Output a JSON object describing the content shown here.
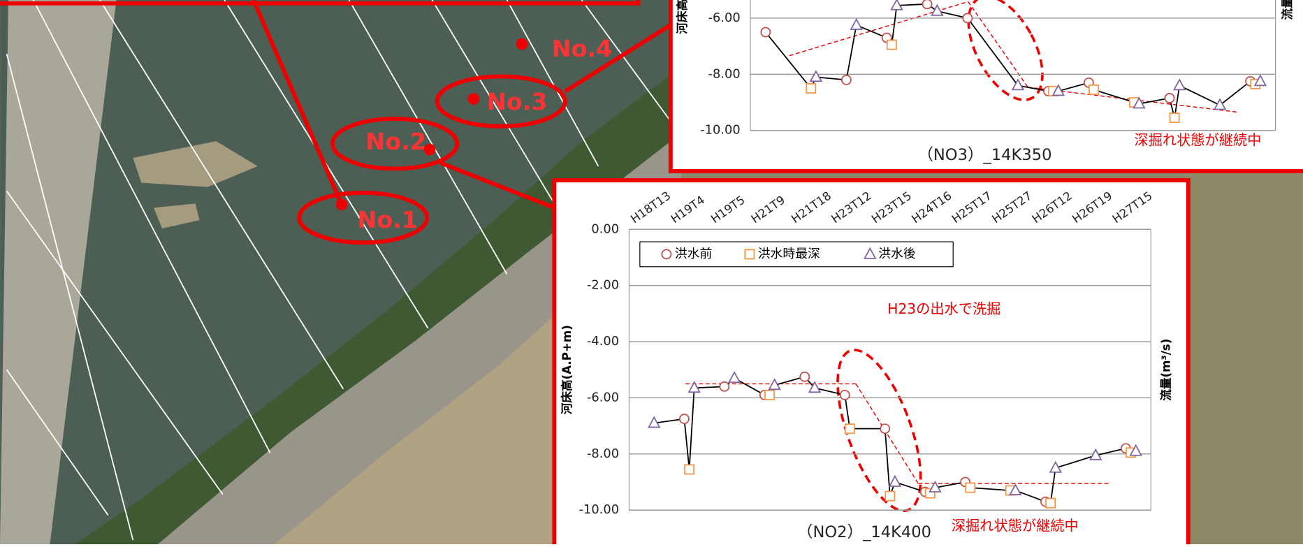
{
  "map_labels": [
    "No.1",
    "No.2",
    "No.3",
    "No.4"
  ],
  "chart_data": [
    {
      "type": "line",
      "title": "（NO3）_14K350",
      "annotation": "深掘れ状態が継続中",
      "y_label": "河床高",
      "y2_label": "流量",
      "categories": [
        null,
        null,
        null,
        null,
        null,
        null,
        null,
        null,
        null,
        null,
        null,
        null,
        null
      ],
      "ylim": [
        -10,
        0
      ],
      "yticks": [
        {
          "value": -6,
          "label": "-6.00"
        },
        {
          "value": -8,
          "label": "-8.00"
        },
        {
          "value": -10,
          "label": "-10.00"
        }
      ],
      "grid": true,
      "series": [
        {
          "color": "#c0504d",
          "values": [
            -6.5,
            null,
            -8.2,
            -6.7,
            -5.5,
            -6.0,
            null,
            -8.6,
            -8.3,
            null,
            -8.85,
            null,
            -8.25
          ]
        },
        {
          "color": "#f79646",
          "values": [
            null,
            -8.5,
            null,
            -6.95,
            null,
            null,
            null,
            -8.6,
            -8.55,
            -9.0,
            -9.55,
            null,
            -8.35
          ]
        },
        {
          "color": "#8064a2",
          "values": [
            null,
            -8.1,
            -6.25,
            -5.55,
            -5.75,
            null,
            -8.4,
            -8.6,
            null,
            -9.05,
            -8.4,
            -9.1,
            -8.25
          ]
        }
      ]
    },
    {
      "type": "line",
      "title": "（NO2）_14K400",
      "annotation": "H23の出水で洗掘",
      "annotation2": "深掘れ状態が継続中",
      "y_label": "河床高(A.P+m)",
      "y2_label": "流量(m³/s)",
      "categories": [
        "H18T13",
        "H19T4",
        "H19T5",
        "H21T9",
        "H21T18",
        "H23T12",
        "H23T15",
        "H24T16",
        "H25T17",
        "H25T27",
        "H26T12",
        "H26T19",
        "H27T15"
      ],
      "ylim": [
        -10,
        0
      ],
      "yticks": [
        {
          "value": 0,
          "label": "0.00"
        },
        {
          "value": -2,
          "label": "-2.00"
        },
        {
          "value": -4,
          "label": "-4.00"
        },
        {
          "value": -6,
          "label": "-6.00"
        },
        {
          "value": -8,
          "label": "-8.00"
        },
        {
          "value": -10,
          "label": "-10.00"
        }
      ],
      "grid": true,
      "series": [
        {
          "name": "洪水前",
          "color": "#c0504d",
          "values": [
            null,
            -6.75,
            -5.6,
            -5.9,
            -5.25,
            -5.9,
            -7.1,
            -9.35,
            -9.0,
            null,
            -9.7,
            null,
            -7.8
          ]
        },
        {
          "name": "洪水時最深",
          "color": "#f79646",
          "values": [
            null,
            -8.55,
            null,
            -5.9,
            null,
            -7.1,
            -9.5,
            -9.4,
            -9.2,
            -9.3,
            -9.75,
            null,
            -7.95
          ]
        },
        {
          "name": "洪水後",
          "color": "#8064a2",
          "values": [
            -6.9,
            -5.65,
            -5.3,
            -5.55,
            -5.65,
            null,
            -9.0,
            -9.2,
            null,
            -9.3,
            -8.5,
            -8.05,
            -7.9
          ]
        }
      ]
    }
  ]
}
